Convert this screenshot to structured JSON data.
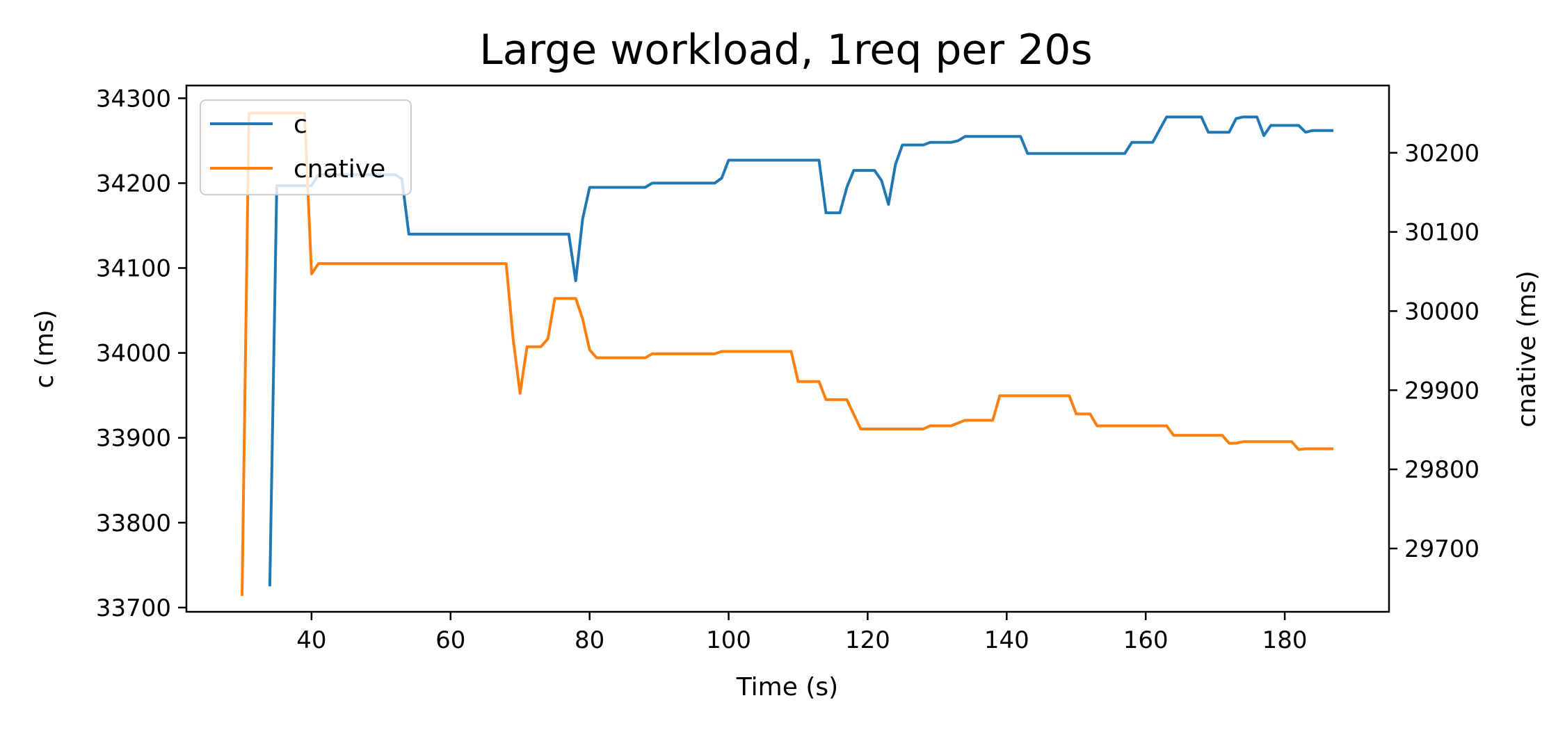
{
  "chart_data": {
    "type": "line",
    "title": "Large workload, 1req per 20s",
    "xlabel": "Time (s)",
    "ylabel_left": "c (ms)",
    "ylabel_right": "cnative (ms)",
    "xlim": [
      22,
      195
    ],
    "ylim_left": [
      33695,
      34315
    ],
    "ylim_right": [
      29620,
      30285
    ],
    "x_ticks": [
      "40",
      "60",
      "80",
      "100",
      "120",
      "140",
      "160",
      "180"
    ],
    "y_left_ticks": [
      "33700",
      "33800",
      "33900",
      "34000",
      "34100",
      "34200",
      "34300"
    ],
    "y_right_ticks": [
      "29700",
      "29800",
      "29900",
      "30000",
      "30100",
      "30200"
    ],
    "grid": false,
    "legend": "top-left",
    "series": [
      {
        "name": "c",
        "axis": "left",
        "color": "#1f77b4",
        "x": [
          34,
          35,
          39,
          40,
          41,
          52,
          53,
          54,
          77,
          78,
          79,
          80,
          88,
          89,
          98,
          99,
          100,
          113,
          114,
          116,
          117,
          118,
          120,
          121,
          122,
          123,
          124,
          125,
          128,
          129,
          132,
          133,
          134,
          142,
          143,
          157,
          158,
          161,
          162,
          163,
          168,
          169,
          172,
          173,
          174,
          176,
          177,
          178,
          182,
          183,
          184,
          187
        ],
        "y": [
          33725,
          34197,
          34197,
          34197,
          34210,
          34210,
          34205,
          34140,
          34140,
          34085,
          34158,
          34195,
          34195,
          34200,
          34200,
          34206,
          34227,
          34227,
          34165,
          34165,
          34195,
          34215,
          34215,
          34215,
          34203,
          34175,
          34222,
          34245,
          34245,
          34248,
          34248,
          34250,
          34255,
          34255,
          34235,
          34235,
          34248,
          34248,
          34263,
          34278,
          34278,
          34260,
          34260,
          34276,
          34278,
          34278,
          34256,
          34268,
          34268,
          34260,
          34262,
          34262
        ]
      },
      {
        "name": "cnative",
        "axis": "right",
        "color": "#ff7f0e",
        "x": [
          30,
          31,
          39,
          40,
          41,
          68,
          69,
          70,
          71,
          73,
          74,
          75,
          78,
          79,
          80,
          81,
          88,
          89,
          98,
          99,
          109,
          110,
          113,
          114,
          117,
          119,
          128,
          129,
          132,
          134,
          138,
          139,
          149,
          150,
          152,
          153,
          163,
          164,
          171,
          172,
          173,
          174,
          181,
          182,
          183,
          187
        ],
        "y": [
          29640,
          30250,
          30250,
          30047,
          30060,
          30060,
          29965,
          29896,
          29955,
          29955,
          29965,
          30016,
          30016,
          29990,
          29951,
          29941,
          29941,
          29946,
          29946,
          29949,
          29949,
          29911,
          29911,
          29888,
          29888,
          29851,
          29851,
          29855,
          29855,
          29862,
          29862,
          29893,
          29893,
          29870,
          29870,
          29855,
          29855,
          29843,
          29843,
          29833,
          29833,
          29835,
          29835,
          29825,
          29826,
          29826
        ]
      }
    ]
  }
}
